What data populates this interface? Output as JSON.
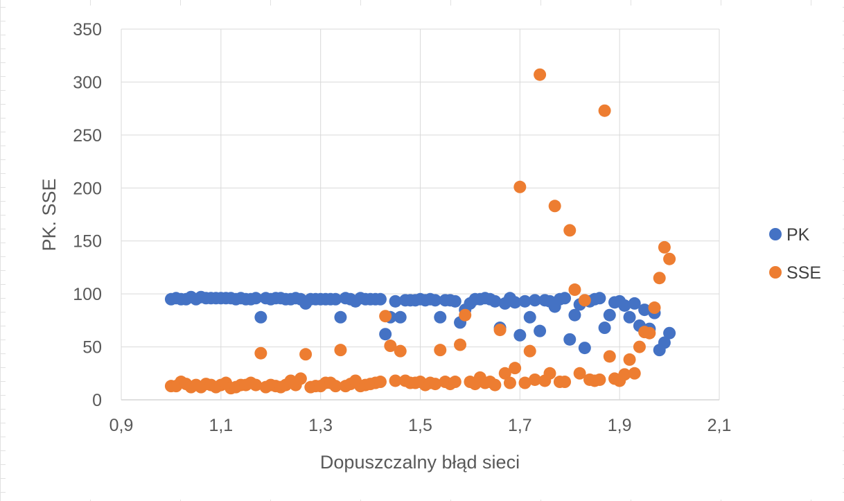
{
  "chart_data": {
    "type": "scatter",
    "xlabel": "Dopuszczalny błąd sieci",
    "ylabel": "PK. SSE",
    "xlim": [
      0.9,
      2.1
    ],
    "ylim": [
      0,
      350
    ],
    "x_ticks": [
      "0,9",
      "1,1",
      "1,3",
      "1,5",
      "1,7",
      "1,9",
      "2,1"
    ],
    "y_ticks": [
      "0",
      "50",
      "100",
      "150",
      "200",
      "250",
      "300",
      "350"
    ],
    "grid": true,
    "legend": "right",
    "series": [
      {
        "name": "PK",
        "color": "#4472C4",
        "points": [
          [
            1.0,
            95
          ],
          [
            1.01,
            96
          ],
          [
            1.02,
            95
          ],
          [
            1.03,
            95
          ],
          [
            1.04,
            97
          ],
          [
            1.05,
            95
          ],
          [
            1.06,
            97
          ],
          [
            1.07,
            96
          ],
          [
            1.08,
            96
          ],
          [
            1.09,
            96
          ],
          [
            1.1,
            96
          ],
          [
            1.11,
            96
          ],
          [
            1.12,
            96
          ],
          [
            1.13,
            95
          ],
          [
            1.14,
            96
          ],
          [
            1.15,
            95
          ],
          [
            1.16,
            95
          ],
          [
            1.17,
            96
          ],
          [
            1.18,
            78
          ],
          [
            1.19,
            96
          ],
          [
            1.2,
            95
          ],
          [
            1.21,
            96
          ],
          [
            1.22,
            96
          ],
          [
            1.23,
            95
          ],
          [
            1.24,
            95
          ],
          [
            1.25,
            96
          ],
          [
            1.26,
            95
          ],
          [
            1.27,
            91
          ],
          [
            1.28,
            95
          ],
          [
            1.29,
            95
          ],
          [
            1.3,
            95
          ],
          [
            1.31,
            95
          ],
          [
            1.32,
            95
          ],
          [
            1.33,
            95
          ],
          [
            1.34,
            78
          ],
          [
            1.35,
            96
          ],
          [
            1.36,
            95
          ],
          [
            1.37,
            93
          ],
          [
            1.38,
            96
          ],
          [
            1.39,
            95
          ],
          [
            1.4,
            95
          ],
          [
            1.41,
            95
          ],
          [
            1.42,
            95
          ],
          [
            1.43,
            62
          ],
          [
            1.44,
            78
          ],
          [
            1.45,
            93
          ],
          [
            1.46,
            78
          ],
          [
            1.47,
            94
          ],
          [
            1.48,
            94
          ],
          [
            1.49,
            94
          ],
          [
            1.5,
            95
          ],
          [
            1.51,
            94
          ],
          [
            1.52,
            95
          ],
          [
            1.53,
            94
          ],
          [
            1.54,
            78
          ],
          [
            1.55,
            94
          ],
          [
            1.56,
            94
          ],
          [
            1.57,
            93
          ],
          [
            1.58,
            73
          ],
          [
            1.59,
            85
          ],
          [
            1.6,
            91
          ],
          [
            1.61,
            95
          ],
          [
            1.62,
            95
          ],
          [
            1.63,
            96
          ],
          [
            1.64,
            95
          ],
          [
            1.65,
            93
          ],
          [
            1.66,
            68
          ],
          [
            1.67,
            91
          ],
          [
            1.68,
            96
          ],
          [
            1.69,
            92
          ],
          [
            1.7,
            61
          ],
          [
            1.71,
            93
          ],
          [
            1.72,
            78
          ],
          [
            1.73,
            94
          ],
          [
            1.74,
            65
          ],
          [
            1.75,
            94
          ],
          [
            1.76,
            93
          ],
          [
            1.77,
            88
          ],
          [
            1.78,
            95
          ],
          [
            1.79,
            96
          ],
          [
            1.8,
            57
          ],
          [
            1.81,
            80
          ],
          [
            1.82,
            90
          ],
          [
            1.83,
            49
          ],
          [
            1.84,
            93
          ],
          [
            1.85,
            95
          ],
          [
            1.86,
            96
          ],
          [
            1.87,
            68
          ],
          [
            1.88,
            80
          ],
          [
            1.89,
            92
          ],
          [
            1.9,
            93
          ],
          [
            1.91,
            89
          ],
          [
            1.92,
            78
          ],
          [
            1.93,
            91
          ],
          [
            1.94,
            70
          ],
          [
            1.95,
            85
          ],
          [
            1.96,
            67
          ],
          [
            1.97,
            82
          ],
          [
            1.98,
            47
          ],
          [
            1.99,
            54
          ],
          [
            2.0,
            63
          ]
        ]
      },
      {
        "name": "SSE",
        "color": "#ED7D31",
        "points": [
          [
            1.0,
            13
          ],
          [
            1.01,
            13
          ],
          [
            1.02,
            17
          ],
          [
            1.03,
            15
          ],
          [
            1.04,
            12
          ],
          [
            1.05,
            14
          ],
          [
            1.06,
            12
          ],
          [
            1.07,
            15
          ],
          [
            1.08,
            14
          ],
          [
            1.09,
            12
          ],
          [
            1.1,
            14
          ],
          [
            1.11,
            16
          ],
          [
            1.12,
            11
          ],
          [
            1.13,
            12
          ],
          [
            1.14,
            14
          ],
          [
            1.15,
            14
          ],
          [
            1.16,
            16
          ],
          [
            1.17,
            14
          ],
          [
            1.18,
            44
          ],
          [
            1.19,
            12
          ],
          [
            1.2,
            14
          ],
          [
            1.21,
            13
          ],
          [
            1.22,
            12
          ],
          [
            1.23,
            14
          ],
          [
            1.24,
            18
          ],
          [
            1.25,
            14
          ],
          [
            1.26,
            20
          ],
          [
            1.27,
            43
          ],
          [
            1.28,
            12
          ],
          [
            1.29,
            13
          ],
          [
            1.3,
            13
          ],
          [
            1.31,
            16
          ],
          [
            1.32,
            16
          ],
          [
            1.33,
            13
          ],
          [
            1.34,
            47
          ],
          [
            1.35,
            13
          ],
          [
            1.36,
            15
          ],
          [
            1.37,
            18
          ],
          [
            1.38,
            13
          ],
          [
            1.39,
            14
          ],
          [
            1.4,
            15
          ],
          [
            1.41,
            16
          ],
          [
            1.42,
            17
          ],
          [
            1.43,
            79
          ],
          [
            1.44,
            51
          ],
          [
            1.45,
            18
          ],
          [
            1.46,
            46
          ],
          [
            1.47,
            18
          ],
          [
            1.48,
            16
          ],
          [
            1.49,
            16
          ],
          [
            1.5,
            17
          ],
          [
            1.51,
            14
          ],
          [
            1.52,
            16
          ],
          [
            1.53,
            15
          ],
          [
            1.54,
            47
          ],
          [
            1.55,
            17
          ],
          [
            1.56,
            15
          ],
          [
            1.57,
            17
          ],
          [
            1.58,
            52
          ],
          [
            1.59,
            80
          ],
          [
            1.6,
            17
          ],
          [
            1.61,
            15
          ],
          [
            1.62,
            21
          ],
          [
            1.63,
            16
          ],
          [
            1.64,
            17
          ],
          [
            1.65,
            14
          ],
          [
            1.66,
            66
          ],
          [
            1.67,
            25
          ],
          [
            1.68,
            16
          ],
          [
            1.69,
            30
          ],
          [
            1.7,
            201
          ],
          [
            1.71,
            16
          ],
          [
            1.72,
            46
          ],
          [
            1.73,
            19
          ],
          [
            1.74,
            307
          ],
          [
            1.75,
            18
          ],
          [
            1.76,
            25
          ],
          [
            1.77,
            183
          ],
          [
            1.78,
            17
          ],
          [
            1.79,
            17
          ],
          [
            1.8,
            160
          ],
          [
            1.81,
            104
          ],
          [
            1.82,
            25
          ],
          [
            1.83,
            94
          ],
          [
            1.84,
            19
          ],
          [
            1.85,
            18
          ],
          [
            1.86,
            19
          ],
          [
            1.87,
            273
          ],
          [
            1.88,
            41
          ],
          [
            1.89,
            20
          ],
          [
            1.9,
            18
          ],
          [
            1.91,
            24
          ],
          [
            1.92,
            38
          ],
          [
            1.93,
            25
          ],
          [
            1.94,
            50
          ],
          [
            1.95,
            64
          ],
          [
            1.96,
            63
          ],
          [
            1.97,
            87
          ],
          [
            1.98,
            115
          ],
          [
            1.99,
            144
          ],
          [
            2.0,
            133
          ]
        ]
      }
    ]
  }
}
